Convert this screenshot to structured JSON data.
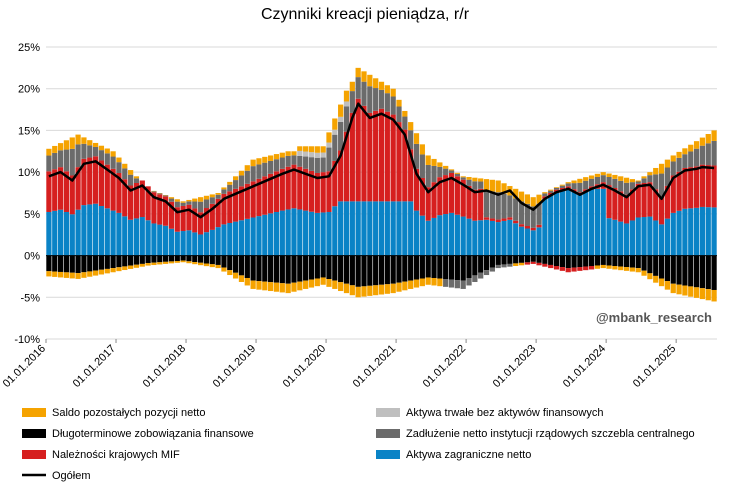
{
  "chart_data": {
    "type": "bar",
    "stacked": true,
    "title": "Czynniki kreacji pieniądza, r/r",
    "watermark": "@mbank_research",
    "xlabel": "",
    "ylabel": "",
    "ylim": [
      -10,
      25
    ],
    "yticks": [
      -10,
      -5,
      0,
      5,
      10,
      15,
      20,
      25
    ],
    "ytick_labels": [
      "-10%",
      "-5%",
      "0%",
      "5%",
      "10%",
      "15%",
      "20%",
      "25%"
    ],
    "xtick_labels": [
      "01.01.2016",
      "01.01.2017",
      "01.01.2018",
      "01.01.2019",
      "01.01.2020",
      "01.01.2021",
      "01.01.2022",
      "01.01.2023",
      "01.01.2024",
      "01.01.2025"
    ],
    "x_start": "2016-01",
    "x_end": "2025-07",
    "grid": true,
    "legend_position": "bottom",
    "series": [
      {
        "name": "Saldo pozostałych pozycji netto",
        "color": "#f5a300",
        "type": "bar"
      },
      {
        "name": "Aktywa trwałe bez aktywów finansowych",
        "color": "#bfbfbf",
        "type": "bar"
      },
      {
        "name": "Długoterminowe zobowiązania finansowe",
        "color": "#000000",
        "type": "bar"
      },
      {
        "name": "Zadłużenie netto instytucji rządowych szczebla centralnego",
        "color": "#6b6b6b",
        "type": "bar"
      },
      {
        "name": "Należności krajowych MIF",
        "color": "#d61f1f",
        "type": "bar"
      },
      {
        "name": "Aktywa zagraniczne netto",
        "color": "#0a83c6",
        "type": "bar"
      },
      {
        "name": "Ogółem",
        "color": "#000000",
        "type": "line"
      }
    ],
    "total_line": [
      {
        "x": "2016-01",
        "y": 9.5
      },
      {
        "x": "2016-03",
        "y": 10.0
      },
      {
        "x": "2016-05",
        "y": 9.0
      },
      {
        "x": "2016-07",
        "y": 11.0
      },
      {
        "x": "2016-09",
        "y": 11.3
      },
      {
        "x": "2016-11",
        "y": 10.3
      },
      {
        "x": "2017-01",
        "y": 9.3
      },
      {
        "x": "2017-03",
        "y": 7.8
      },
      {
        "x": "2017-05",
        "y": 8.4
      },
      {
        "x": "2017-07",
        "y": 7.0
      },
      {
        "x": "2017-09",
        "y": 6.5
      },
      {
        "x": "2017-11",
        "y": 5.2
      },
      {
        "x": "2018-01",
        "y": 5.5
      },
      {
        "x": "2018-03",
        "y": 4.6
      },
      {
        "x": "2018-05",
        "y": 5.6
      },
      {
        "x": "2018-07",
        "y": 6.8
      },
      {
        "x": "2018-09",
        "y": 7.4
      },
      {
        "x": "2018-11",
        "y": 8.0
      },
      {
        "x": "2019-01",
        "y": 8.6
      },
      {
        "x": "2019-03",
        "y": 9.2
      },
      {
        "x": "2019-05",
        "y": 9.8
      },
      {
        "x": "2019-07",
        "y": 10.3
      },
      {
        "x": "2019-09",
        "y": 9.8
      },
      {
        "x": "2019-11",
        "y": 9.3
      },
      {
        "x": "2020-01",
        "y": 9.5
      },
      {
        "x": "2020-03",
        "y": 12.0
      },
      {
        "x": "2020-05",
        "y": 16.5
      },
      {
        "x": "2020-06",
        "y": 18.2
      },
      {
        "x": "2020-08",
        "y": 16.5
      },
      {
        "x": "2020-10",
        "y": 17.0
      },
      {
        "x": "2020-12",
        "y": 16.3
      },
      {
        "x": "2021-02",
        "y": 14.5
      },
      {
        "x": "2021-04",
        "y": 9.8
      },
      {
        "x": "2021-06",
        "y": 7.6
      },
      {
        "x": "2021-08",
        "y": 8.8
      },
      {
        "x": "2021-10",
        "y": 9.3
      },
      {
        "x": "2021-12",
        "y": 8.5
      },
      {
        "x": "2022-02",
        "y": 7.6
      },
      {
        "x": "2022-04",
        "y": 7.8
      },
      {
        "x": "2022-06",
        "y": 7.3
      },
      {
        "x": "2022-08",
        "y": 7.8
      },
      {
        "x": "2022-10",
        "y": 6.3
      },
      {
        "x": "2022-12",
        "y": 5.5
      },
      {
        "x": "2023-02",
        "y": 6.8
      },
      {
        "x": "2023-04",
        "y": 7.6
      },
      {
        "x": "2023-06",
        "y": 8.0
      },
      {
        "x": "2023-08",
        "y": 7.3
      },
      {
        "x": "2023-10",
        "y": 8.0
      },
      {
        "x": "2023-12",
        "y": 8.5
      },
      {
        "x": "2024-02",
        "y": 7.8
      },
      {
        "x": "2024-04",
        "y": 7.0
      },
      {
        "x": "2024-06",
        "y": 8.3
      },
      {
        "x": "2024-08",
        "y": 8.5
      },
      {
        "x": "2024-10",
        "y": 6.8
      },
      {
        "x": "2024-12",
        "y": 9.3
      },
      {
        "x": "2025-02",
        "y": 10.2
      },
      {
        "x": "2025-04",
        "y": 10.4
      },
      {
        "x": "2025-05",
        "y": 10.6
      },
      {
        "x": "2025-07",
        "y": 10.5
      }
    ],
    "stack_envelope": {
      "positive_top": [
        {
          "x": "2016-01",
          "y": 12.8
        },
        {
          "x": "2016-06",
          "y": 14.5
        },
        {
          "x": "2016-12",
          "y": 12.5
        },
        {
          "x": "2017-06",
          "y": 8.0
        },
        {
          "x": "2017-12",
          "y": 6.5
        },
        {
          "x": "2018-06",
          "y": 7.5
        },
        {
          "x": "2018-12",
          "y": 11.5
        },
        {
          "x": "2019-06",
          "y": 12.5
        },
        {
          "x": "2019-12",
          "y": 12.5
        },
        {
          "x": "2020-06",
          "y": 22.5
        },
        {
          "x": "2020-12",
          "y": 20.0
        },
        {
          "x": "2021-06",
          "y": 12.0
        },
        {
          "x": "2021-12",
          "y": 9.5
        },
        {
          "x": "2022-06",
          "y": 9.0
        },
        {
          "x": "2022-12",
          "y": 7.0
        },
        {
          "x": "2023-06",
          "y": 8.8
        },
        {
          "x": "2023-12",
          "y": 10.0
        },
        {
          "x": "2024-06",
          "y": 9.0
        },
        {
          "x": "2024-12",
          "y": 12.0
        },
        {
          "x": "2025-07",
          "y": 15.0
        }
      ],
      "negative_bottom": [
        {
          "x": "2016-01",
          "y": -2.5
        },
        {
          "x": "2016-06",
          "y": -2.8
        },
        {
          "x": "2016-12",
          "y": -2.0
        },
        {
          "x": "2017-06",
          "y": -1.2
        },
        {
          "x": "2017-12",
          "y": -0.8
        },
        {
          "x": "2018-06",
          "y": -1.5
        },
        {
          "x": "2018-12",
          "y": -4.0
        },
        {
          "x": "2019-06",
          "y": -4.5
        },
        {
          "x": "2019-12",
          "y": -3.5
        },
        {
          "x": "2020-06",
          "y": -5.0
        },
        {
          "x": "2020-12",
          "y": -4.5
        },
        {
          "x": "2021-06",
          "y": -3.5
        },
        {
          "x": "2021-12",
          "y": -4.0
        },
        {
          "x": "2022-06",
          "y": -1.5
        },
        {
          "x": "2022-12",
          "y": -1.0
        },
        {
          "x": "2023-06",
          "y": -2.0
        },
        {
          "x": "2023-12",
          "y": -1.5
        },
        {
          "x": "2024-06",
          "y": -2.0
        },
        {
          "x": "2024-12",
          "y": -4.5
        },
        {
          "x": "2025-07",
          "y": -5.5
        }
      ]
    }
  }
}
